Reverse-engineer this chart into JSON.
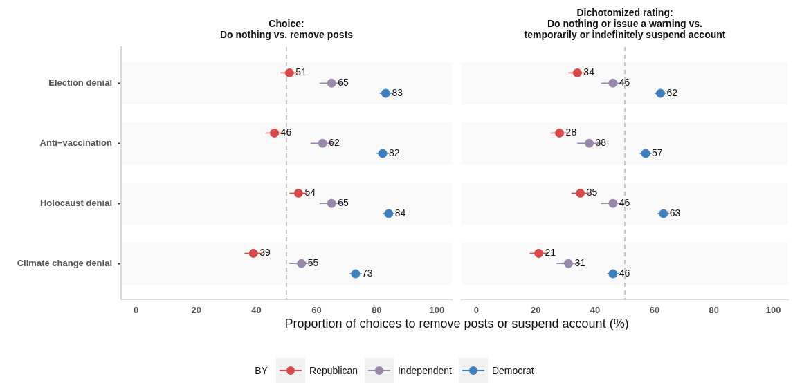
{
  "chart_data": [
    {
      "type": "scatter",
      "title": "Choice:\nDo nothing vs. remove posts",
      "xlabel": "Proportion of choices to remove posts or suspend account (%)",
      "legend_title": "BY",
      "legend": "bottom",
      "orientation": "horizontal",
      "marker": "circle",
      "data_labels": true,
      "categories": [
        "Election denial",
        "Anti−vaccination",
        "Holocaust denial",
        "Climate change denial"
      ],
      "xlim": [
        -5,
        105
      ],
      "xticks": [
        0,
        20,
        40,
        60,
        80,
        100
      ],
      "ref_lines": [
        {
          "axis": "x",
          "value": 50,
          "color": "#c8c8c8",
          "line_style": "dashed"
        }
      ],
      "series": [
        {
          "name": "Republican",
          "color": "#d64a4b",
          "values": [
            51,
            46,
            54,
            39
          ],
          "errors": [
            3,
            3,
            3,
            3
          ]
        },
        {
          "name": "Independent",
          "color": "#9a88aa",
          "values": [
            65,
            62,
            65,
            55
          ],
          "errors": [
            4,
            4,
            4,
            4
          ]
        },
        {
          "name": "Democrat",
          "color": "#3f80bc",
          "values": [
            83,
            82,
            84,
            73
          ],
          "errors": [
            2,
            2,
            2,
            2
          ]
        }
      ]
    },
    {
      "type": "scatter",
      "title": "Dichotomized rating:\nDo nothing or issue a warning vs.\ntemporarily or indefinitely suspend account",
      "orientation": "horizontal",
      "marker": "circle",
      "data_labels": true,
      "tick_labels": "x",
      "categories": [
        null,
        null,
        null,
        null
      ],
      "xlim": [
        -5,
        105
      ],
      "xticks": [
        0,
        20,
        40,
        60,
        80,
        100
      ],
      "ref_lines": [
        {
          "axis": "x",
          "value": 50,
          "color": "#c8c8c8",
          "line_style": "dashed"
        }
      ],
      "series": [
        {
          "color": "#d64a4b",
          "values": [
            34,
            28,
            35,
            21
          ],
          "errors": [
            3,
            3,
            3,
            3
          ]
        },
        {
          "color": "#9a88aa",
          "values": [
            46,
            38,
            46,
            31
          ],
          "errors": [
            4,
            4,
            4,
            4
          ]
        },
        {
          "color": "#3f80bc",
          "values": [
            62,
            57,
            63,
            46
          ],
          "errors": [
            2,
            2,
            2,
            2
          ]
        }
      ]
    }
  ]
}
